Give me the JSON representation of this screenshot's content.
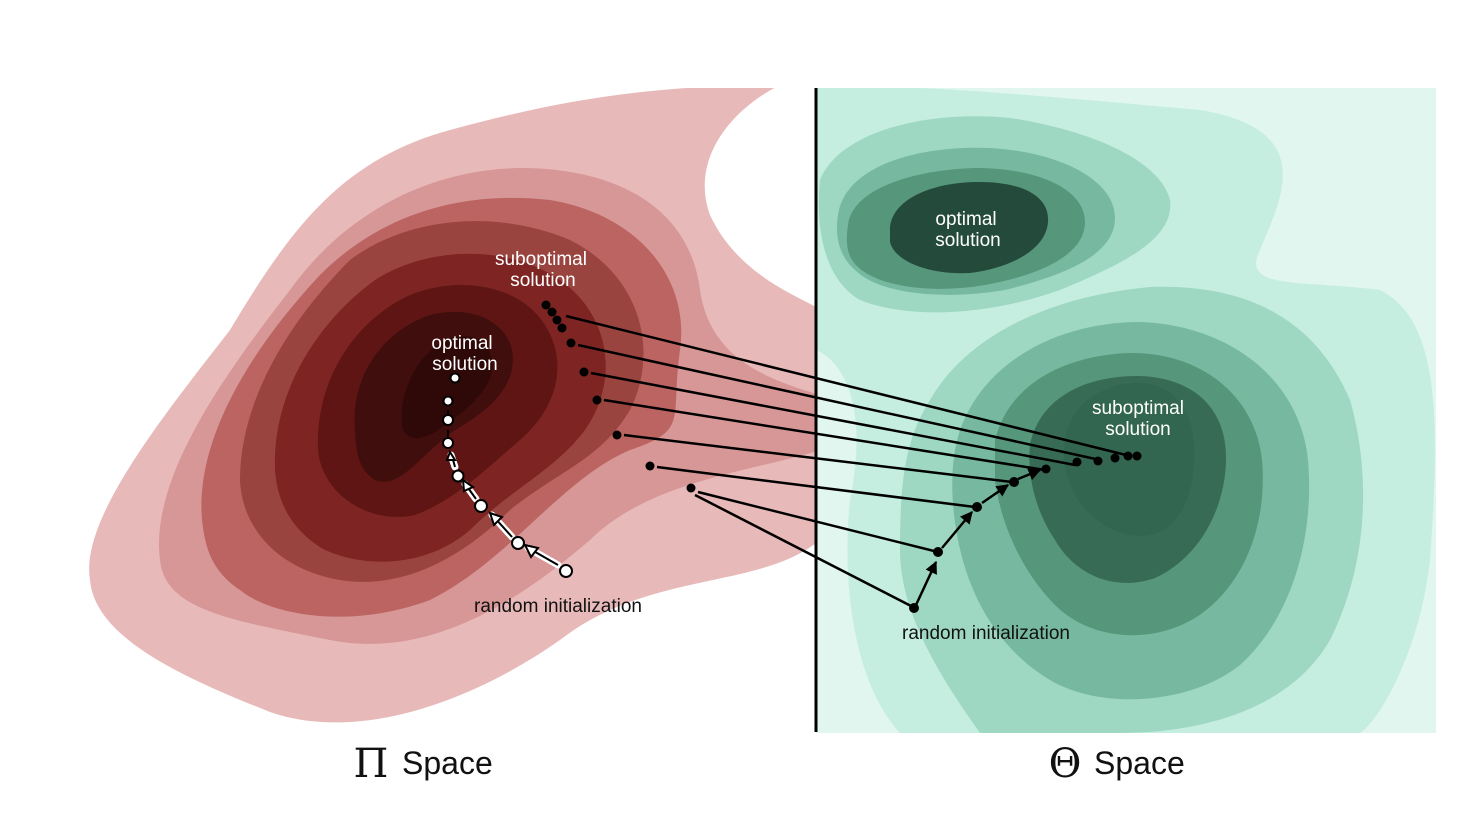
{
  "left_panel": {
    "optimal_line1": "optimal",
    "optimal_line2": "solution",
    "suboptimal_line1": "suboptimal",
    "suboptimal_line2": "solution",
    "init_label": "random initialization",
    "caption_symbol": "Π",
    "caption_word": "Space",
    "palette": [
      "#e8b9b9",
      "#d69796",
      "#bb6461",
      "#9a4440",
      "#7e2523",
      "#5e1513",
      "#400e0c"
    ]
  },
  "right_panel": {
    "optimal_line1": "optimal",
    "optimal_line2": "solution",
    "suboptimal_line1": "suboptimal",
    "suboptimal_line2": "solution",
    "init_label": "random initialization",
    "caption_symbol": "Θ",
    "caption_word": "Space",
    "palette": [
      "#e0f6ee",
      "#c5eee0",
      "#9ed8c3",
      "#77b9a0",
      "#56967b",
      "#376b55",
      "#244a3b"
    ]
  },
  "divider_color": "#000000"
}
